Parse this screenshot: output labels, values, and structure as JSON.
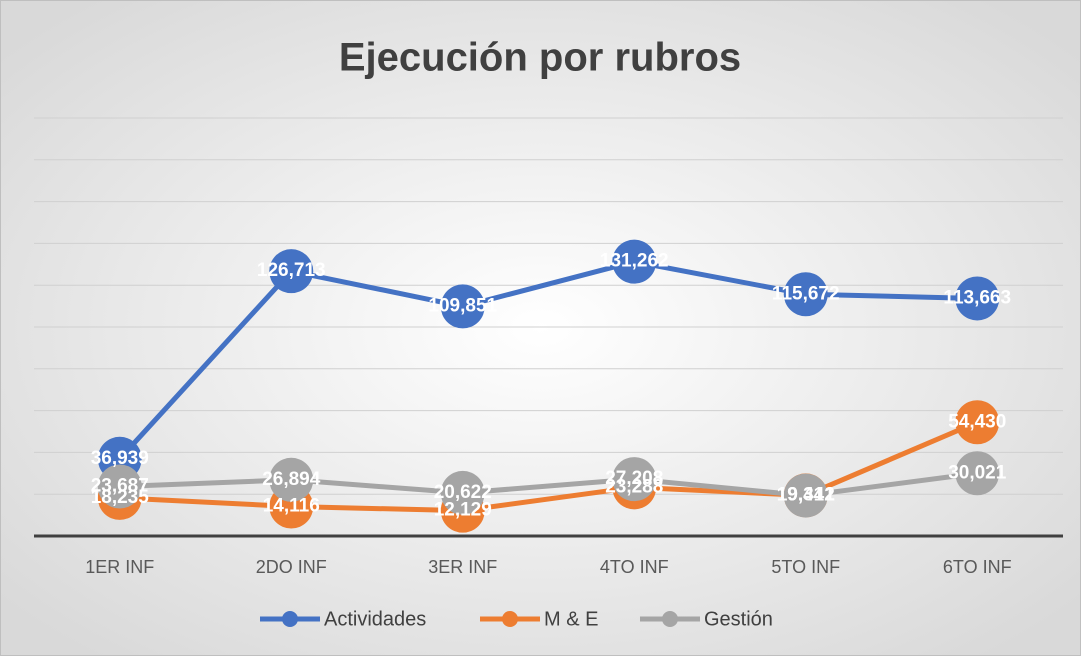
{
  "chart_data": {
    "type": "line",
    "title": "Ejecución por rubros",
    "categories": [
      "1ER INF",
      "2DO INF",
      "3ER INF",
      "4TO INF",
      "5TO INF",
      "6TO INF"
    ],
    "series": [
      {
        "name": "Actividades",
        "color": "#4472c4",
        "values": [
          36939,
          126713,
          109851,
          131262,
          115672,
          113663
        ],
        "value_labels": [
          "36,939",
          "126,713",
          "109,851",
          "131,262",
          "115,672",
          "113,663"
        ]
      },
      {
        "name": "M & E",
        "color": "#ed7d31",
        "values": [
          18235,
          14116,
          12129,
          23288,
          19412,
          54430
        ],
        "value_labels": [
          "18,235",
          "14,116",
          "12,129",
          "23,288",
          "19,412",
          "54,430"
        ]
      },
      {
        "name": "Gestión",
        "color": "#a5a5a5",
        "values": [
          23687,
          26894,
          20622,
          27208,
          19341,
          30021
        ],
        "value_labels": [
          "23,687",
          "26,894",
          "20,622",
          "27,208",
          "19,341",
          "30,021"
        ]
      }
    ],
    "ylim": [
      0,
      200000
    ],
    "yticks": [
      0,
      20000,
      40000,
      60000,
      80000,
      100000,
      120000,
      140000,
      160000,
      180000,
      200000
    ],
    "grid": true,
    "legend": "bottom"
  }
}
